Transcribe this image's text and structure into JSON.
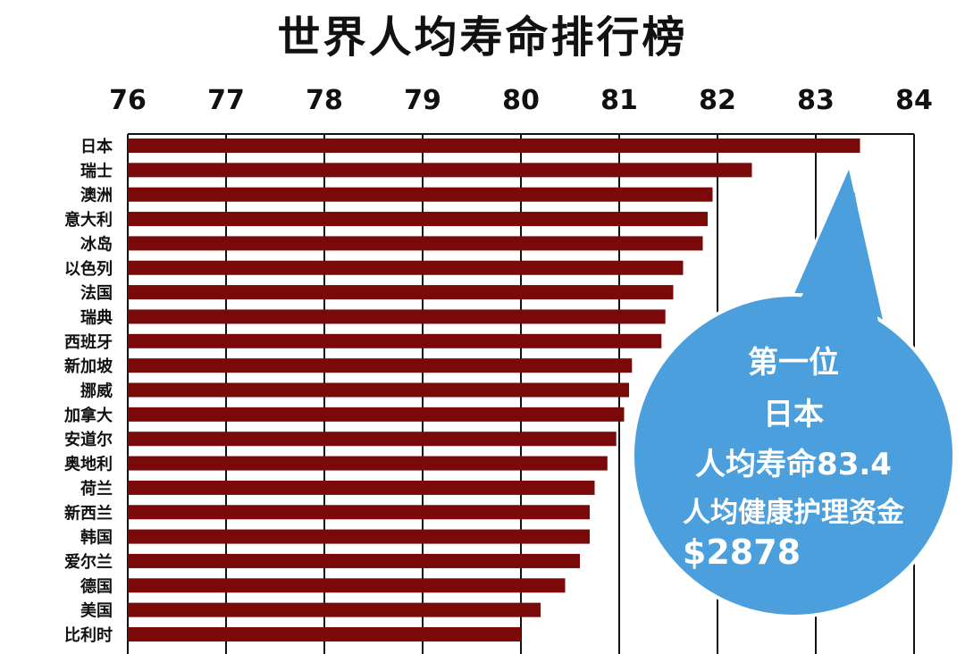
{
  "chart_data": {
    "type": "bar",
    "orientation": "horizontal",
    "title": "世界人均寿命排行榜",
    "xlim": [
      76,
      84
    ],
    "x_ticks": [
      "76",
      "77",
      "78",
      "79",
      "80",
      "81",
      "82",
      "83",
      "84"
    ],
    "x_axis_position": "top",
    "grid": true,
    "categories": [
      "日本",
      "瑞士",
      "澳洲",
      "意大利",
      "冰岛",
      "以色列",
      "法国",
      "瑞典",
      "西班牙",
      "新加坡",
      "挪威",
      "加拿大",
      "安道尔",
      "奥地利",
      "荷兰",
      "新西兰",
      "韩国",
      "爱尔兰",
      "德国",
      "美国",
      "比利时"
    ],
    "values": [
      83.45,
      82.35,
      81.95,
      81.9,
      81.85,
      81.65,
      81.55,
      81.47,
      81.43,
      81.13,
      81.1,
      81.05,
      80.97,
      80.88,
      80.75,
      80.7,
      80.7,
      80.6,
      80.45,
      80.2,
      80.0
    ],
    "bar_color": "#7a0a0a"
  },
  "callout": {
    "color": "#4a9fdc",
    "lines": [
      "第一位",
      "日本",
      "人均寿命83.4",
      "人均健康护理资金",
      "$2878"
    ]
  }
}
